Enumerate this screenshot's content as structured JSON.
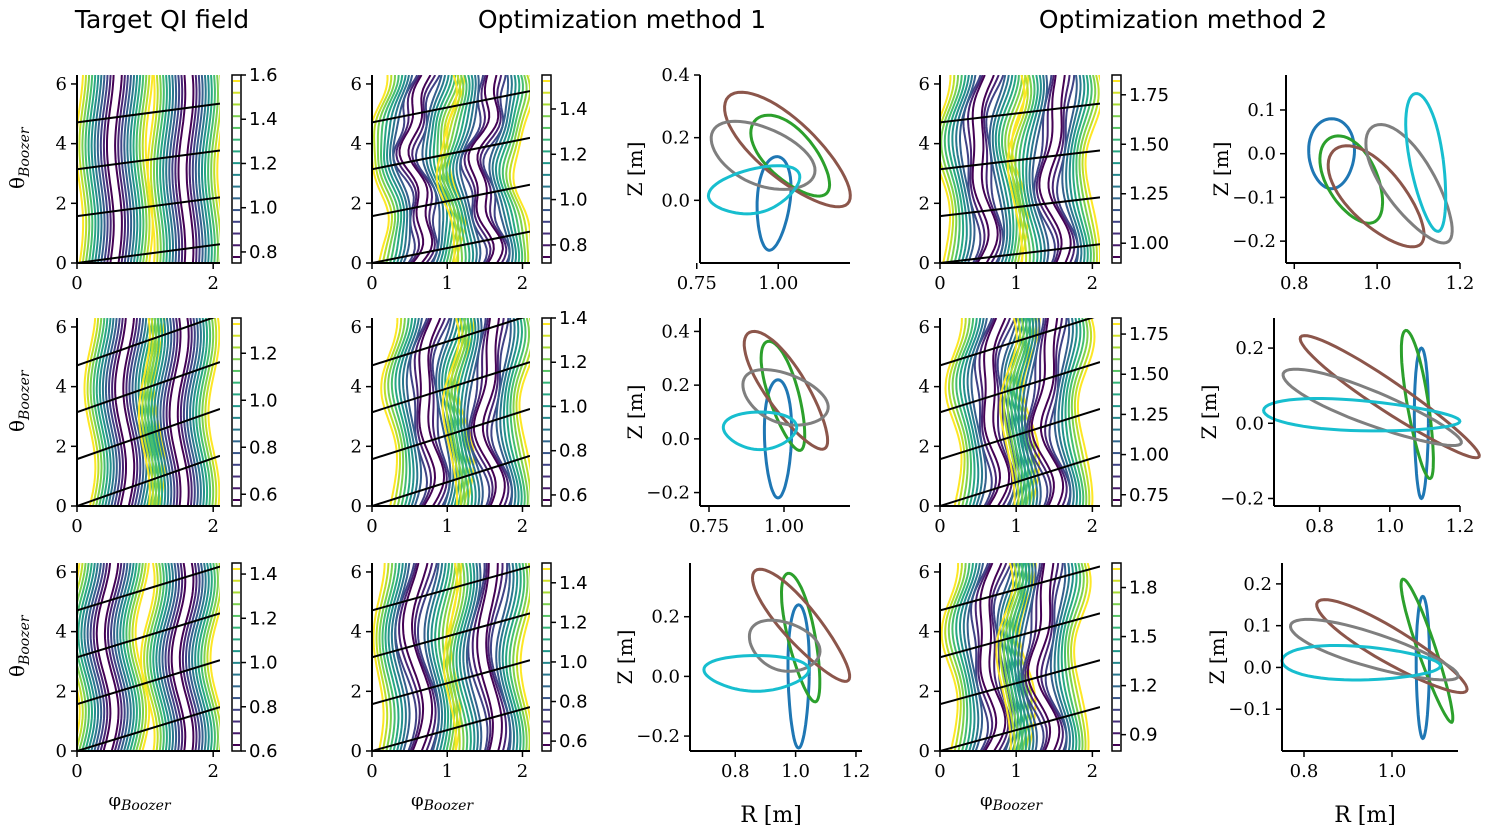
{
  "figure": {
    "column_titles": [
      "Target QI field",
      "Optimization method 1",
      "Optimization method 2"
    ],
    "contour_xlabel": "φ",
    "contour_xlabel_sub": "Boozer",
    "contour_ylabel": "θ",
    "contour_ylabel_sub": "Boozer",
    "cross_xlabel": "R [m]",
    "cross_ylabel": "Z [m]"
  },
  "colors": {
    "viridis": [
      "#440154",
      "#482878",
      "#3e4a89",
      "#31688e",
      "#26828e",
      "#1f9e89",
      "#35b779",
      "#6ece58",
      "#b5de2b",
      "#fde725"
    ],
    "slices": [
      "#1f77b4",
      "#2ca02c",
      "#8c564b",
      "#7f7f7f",
      "#17becf"
    ],
    "axis": "#000000",
    "background": "#ffffff"
  },
  "chart_data": [
    {
      "type": "contour",
      "row": 0,
      "column": "Target QI field",
      "xlim": [
        0,
        2.1
      ],
      "ylim": [
        0,
        6.3
      ],
      "xticks": [
        "0",
        "2"
      ],
      "yticks": [
        "0",
        "2",
        "4",
        "6"
      ],
      "colorbar_range": [
        0.75,
        1.6
      ],
      "colorbar_ticks": [
        "1.6",
        "1.4",
        "1.2",
        "1.0",
        "0.8"
      ],
      "field_lines": [
        0,
        1.571,
        3.142,
        4.712
      ],
      "field_line_slope": 0.3,
      "wells": [
        0.55,
        1.6
      ],
      "ripple": 0.05,
      "lobes": 0
    },
    {
      "type": "contour",
      "row": 0,
      "column": "Optimization method 1",
      "xlim": [
        0,
        2.1
      ],
      "ylim": [
        0,
        6.3
      ],
      "xticks": [
        "0",
        "1",
        "2"
      ],
      "yticks": [
        "0",
        "2",
        "4",
        "6"
      ],
      "colorbar_range": [
        0.72,
        1.55
      ],
      "colorbar_ticks": [
        "1.4",
        "1.2",
        "1.0",
        "0.8"
      ],
      "field_lines": [
        0,
        1.571,
        3.142,
        4.712
      ],
      "field_line_slope": 0.5,
      "wells": [
        0.6,
        1.5
      ],
      "ripple": 0.12,
      "lobes": 3
    },
    {
      "type": "line",
      "subtype": "cross-sections",
      "row": 0,
      "column": "Optimization method 1",
      "xlim": [
        0.76,
        1.22
      ],
      "ylim": [
        -0.2,
        0.4
      ],
      "xticks": [
        "0.75",
        "1.00"
      ],
      "yticks": [
        "0.4",
        "0.2",
        "0.0"
      ],
      "curves": [
        {
          "cx": 0.985,
          "cy": -0.01,
          "a": 0.05,
          "b": 0.15,
          "rot": -5,
          "skew": 0.35
        },
        {
          "cx": 1.04,
          "cy": 0.14,
          "a": 0.075,
          "b": 0.16,
          "rot": 42,
          "skew": 0.3
        },
        {
          "cx": 1.03,
          "cy": 0.16,
          "a": 0.09,
          "b": 0.25,
          "rot": 47,
          "skew": 0.2
        },
        {
          "cx": 0.95,
          "cy": 0.14,
          "a": 0.17,
          "b": 0.09,
          "rot": -25,
          "skew": 0.2
        },
        {
          "cx": 0.93,
          "cy": 0.03,
          "a": 0.14,
          "b": 0.07,
          "rot": 15,
          "skew": 0.5
        }
      ]
    },
    {
      "type": "contour",
      "row": 0,
      "column": "Optimization method 2",
      "xlim": [
        0,
        2.1
      ],
      "ylim": [
        0,
        6.3
      ],
      "xticks": [
        "0",
        "1",
        "2"
      ],
      "yticks": [
        "0",
        "2",
        "4",
        "6"
      ],
      "colorbar_range": [
        0.9,
        1.85
      ],
      "colorbar_ticks": [
        "1.75",
        "1.50",
        "1.25",
        "1.00"
      ],
      "field_lines": [
        0,
        1.571,
        3.142,
        4.712
      ],
      "field_line_slope": 0.3,
      "wells": [
        0.55,
        1.5
      ],
      "ripple": 0.1,
      "lobes": 2
    },
    {
      "type": "line",
      "subtype": "cross-sections",
      "row": 0,
      "column": "Optimization method 2",
      "xlim": [
        0.78,
        1.2
      ],
      "ylim": [
        -0.25,
        0.18
      ],
      "xticks": [
        "0.8",
        "1.0",
        "1.2"
      ],
      "yticks": [
        "0.1",
        "0.0",
        "-0.1",
        "-0.2"
      ],
      "curves": [
        {
          "cx": 0.89,
          "cy": 0.0,
          "a": 0.055,
          "b": 0.08,
          "rot": 0,
          "skew": 0.2
        },
        {
          "cx": 0.94,
          "cy": -0.06,
          "a": 0.06,
          "b": 0.11,
          "rot": 30,
          "skew": 0.2
        },
        {
          "cx": 1.0,
          "cy": -0.1,
          "a": 0.065,
          "b": 0.15,
          "rot": 45,
          "skew": 0.3
        },
        {
          "cx": 1.08,
          "cy": -0.07,
          "a": 0.06,
          "b": 0.16,
          "rot": 35,
          "skew": 0.3
        },
        {
          "cx": 1.12,
          "cy": -0.02,
          "a": 0.04,
          "b": 0.16,
          "rot": 10,
          "skew": 0.3
        }
      ]
    },
    {
      "type": "contour",
      "row": 1,
      "column": "Target QI field",
      "xlim": [
        0,
        2.1
      ],
      "ylim": [
        0,
        6.3
      ],
      "xticks": [
        "0",
        "2"
      ],
      "yticks": [
        "0",
        "2",
        "4",
        "6"
      ],
      "colorbar_range": [
        0.55,
        1.35
      ],
      "colorbar_ticks": [
        "1.2",
        "1.0",
        "0.8",
        "0.6"
      ],
      "field_lines": [
        0,
        1.571,
        3.142,
        4.712
      ],
      "field_line_slope": 0.8,
      "wells": [
        0.7,
        1.5
      ],
      "ripple": 0.08,
      "lobes": 0
    },
    {
      "type": "contour",
      "row": 1,
      "column": "Optimization method 1",
      "xlim": [
        0,
        2.1
      ],
      "ylim": [
        0,
        6.3
      ],
      "xticks": [
        "0",
        "1",
        "2"
      ],
      "yticks": [
        "0",
        "2",
        "4",
        "6"
      ],
      "colorbar_range": [
        0.55,
        1.4
      ],
      "colorbar_ticks": [
        "1.4",
        "1.2",
        "1.0",
        "0.8",
        "0.6"
      ],
      "field_lines": [
        0,
        1.571,
        3.142,
        4.712
      ],
      "field_line_slope": 0.8,
      "wells": [
        0.75,
        1.55
      ],
      "ripple": 0.1,
      "lobes": 2
    },
    {
      "type": "line",
      "subtype": "cross-sections",
      "row": 1,
      "column": "Optimization method 1",
      "xlim": [
        0.72,
        1.22
      ],
      "ylim": [
        -0.25,
        0.45
      ],
      "xticks": [
        "0.75",
        "1.00"
      ],
      "yticks": [
        "0.4",
        "0.2",
        "0.0",
        "-0.2"
      ],
      "curves": [
        {
          "cx": 0.98,
          "cy": 0.0,
          "a": 0.045,
          "b": 0.22,
          "rot": 0,
          "skew": 0.3
        },
        {
          "cx": 1.0,
          "cy": 0.16,
          "a": 0.05,
          "b": 0.21,
          "rot": 15,
          "skew": 0.3
        },
        {
          "cx": 1.01,
          "cy": 0.18,
          "a": 0.07,
          "b": 0.25,
          "rot": 30,
          "skew": 0.3
        },
        {
          "cx": 1.0,
          "cy": 0.15,
          "a": 0.15,
          "b": 0.09,
          "rot": -25,
          "skew": 0.3
        },
        {
          "cx": 0.92,
          "cy": 0.03,
          "a": 0.12,
          "b": 0.07,
          "rot": 0,
          "skew": 0.4
        }
      ]
    },
    {
      "type": "contour",
      "row": 1,
      "column": "Optimization method 2",
      "xlim": [
        0,
        2.1
      ],
      "ylim": [
        0,
        6.3
      ],
      "xticks": [
        "0",
        "1",
        "2"
      ],
      "yticks": [
        "0",
        "2",
        "4",
        "6"
      ],
      "colorbar_range": [
        0.68,
        1.85
      ],
      "colorbar_ticks": [
        "1.75",
        "1.50",
        "1.25",
        "1.00",
        "0.75"
      ],
      "field_lines": [
        0,
        1.571,
        3.142,
        4.712
      ],
      "field_line_slope": 0.8,
      "wells": [
        0.7,
        1.4
      ],
      "ripple": 0.1,
      "lobes": 2
    },
    {
      "type": "line",
      "subtype": "cross-sections",
      "row": 1,
      "column": "Optimization method 2",
      "xlim": [
        0.67,
        1.2
      ],
      "ylim": [
        -0.22,
        0.28
      ],
      "xticks": [
        "0.8",
        "1.0",
        "1.2"
      ],
      "yticks": [
        "0.2",
        "0.0",
        "-0.2"
      ],
      "curves": [
        {
          "cx": 1.09,
          "cy": 0.0,
          "a": 0.02,
          "b": 0.2,
          "rot": 0,
          "skew": 0.2
        },
        {
          "cx": 1.08,
          "cy": 0.05,
          "a": 0.03,
          "b": 0.2,
          "rot": 10,
          "skew": 0.2
        },
        {
          "cx": 1.0,
          "cy": 0.07,
          "a": 0.04,
          "b": 0.3,
          "rot": 58,
          "skew": 0.2
        },
        {
          "cx": 0.95,
          "cy": 0.04,
          "a": 0.045,
          "b": 0.27,
          "rot": 70,
          "skew": 0.3
        },
        {
          "cx": 0.92,
          "cy": 0.02,
          "a": 0.04,
          "b": 0.28,
          "rot": 87,
          "skew": 0.45
        }
      ]
    },
    {
      "type": "contour",
      "row": 2,
      "column": "Target QI field",
      "xlim": [
        0,
        2.1
      ],
      "ylim": [
        0,
        6.3
      ],
      "xticks": [
        "0",
        "2"
      ],
      "yticks": [
        "0",
        "2",
        "4",
        "6"
      ],
      "colorbar_range": [
        0.6,
        1.45
      ],
      "colorbar_ticks": [
        "1.4",
        "1.2",
        "1.0",
        "0.8",
        "0.6"
      ],
      "field_lines": [
        0,
        1.571,
        3.142,
        4.712
      ],
      "field_line_slope": 0.7,
      "wells": [
        0.45,
        1.55
      ],
      "ripple": 0.1,
      "lobes": 0
    },
    {
      "type": "contour",
      "row": 2,
      "column": "Optimization method 1",
      "xlim": [
        0,
        2.1
      ],
      "ylim": [
        0,
        6.3
      ],
      "xticks": [
        "0",
        "1",
        "2"
      ],
      "yticks": [
        "0",
        "2",
        "4",
        "6"
      ],
      "colorbar_range": [
        0.55,
        1.5
      ],
      "colorbar_ticks": [
        "1.4",
        "1.2",
        "1.0",
        "0.8",
        "0.6"
      ],
      "field_lines": [
        0,
        1.571,
        3.142,
        4.712
      ],
      "field_line_slope": 0.7,
      "wells": [
        0.6,
        1.55
      ],
      "ripple": 0.08,
      "lobes": 1
    },
    {
      "type": "line",
      "subtype": "cross-sections",
      "row": 2,
      "column": "Optimization method 1",
      "xlim": [
        0.65,
        1.22
      ],
      "ylim": [
        -0.25,
        0.38
      ],
      "xticks": [
        "0.8",
        "1.0",
        "1.2"
      ],
      "yticks": [
        "0.2",
        "0.0",
        "-0.2"
      ],
      "curves": [
        {
          "cx": 1.01,
          "cy": 0.0,
          "a": 0.035,
          "b": 0.24,
          "rot": 0,
          "skew": 0.3
        },
        {
          "cx": 1.02,
          "cy": 0.13,
          "a": 0.045,
          "b": 0.22,
          "rot": 12,
          "skew": 0.3
        },
        {
          "cx": 1.02,
          "cy": 0.17,
          "a": 0.06,
          "b": 0.24,
          "rot": 40,
          "skew": 0.3
        },
        {
          "cx": 0.96,
          "cy": 0.1,
          "a": 0.12,
          "b": 0.08,
          "rot": -20,
          "skew": 0.3
        },
        {
          "cx": 0.87,
          "cy": 0.01,
          "a": 0.17,
          "b": 0.06,
          "rot": 0,
          "skew": 0.45
        }
      ]
    },
    {
      "type": "contour",
      "row": 2,
      "column": "Optimization method 2",
      "xlim": [
        0,
        2.1
      ],
      "ylim": [
        0,
        6.3
      ],
      "xticks": [
        "0",
        "1",
        "2"
      ],
      "yticks": [
        "0",
        "2",
        "4",
        "6"
      ],
      "colorbar_range": [
        0.8,
        1.95
      ],
      "colorbar_ticks": [
        "1.8",
        "1.5",
        "1.2",
        "0.9"
      ],
      "field_lines": [
        0,
        1.571,
        3.142,
        4.712
      ],
      "field_line_slope": 0.7,
      "wells": [
        0.65,
        1.35
      ],
      "ripple": 0.1,
      "lobes": 2
    },
    {
      "type": "line",
      "subtype": "cross-sections",
      "row": 2,
      "column": "Optimization method 2",
      "xlim": [
        0.75,
        1.15
      ],
      "ylim": [
        -0.2,
        0.25
      ],
      "xticks": [
        "0.8",
        "1.0"
      ],
      "yticks": [
        "0.2",
        "0.1",
        "0.0",
        "-0.1"
      ],
      "curves": [
        {
          "cx": 1.07,
          "cy": 0.0,
          "a": 0.015,
          "b": 0.17,
          "rot": 0,
          "skew": 0.2
        },
        {
          "cx": 1.08,
          "cy": 0.04,
          "a": 0.02,
          "b": 0.18,
          "rot": 18,
          "skew": 0.2
        },
        {
          "cx": 1.0,
          "cy": 0.05,
          "a": 0.04,
          "b": 0.2,
          "rot": 58,
          "skew": 0.2
        },
        {
          "cx": 0.96,
          "cy": 0.04,
          "a": 0.04,
          "b": 0.2,
          "rot": 72,
          "skew": 0.3
        },
        {
          "cx": 0.93,
          "cy": 0.01,
          "a": 0.04,
          "b": 0.18,
          "rot": 88,
          "skew": 0.45
        }
      ]
    }
  ]
}
